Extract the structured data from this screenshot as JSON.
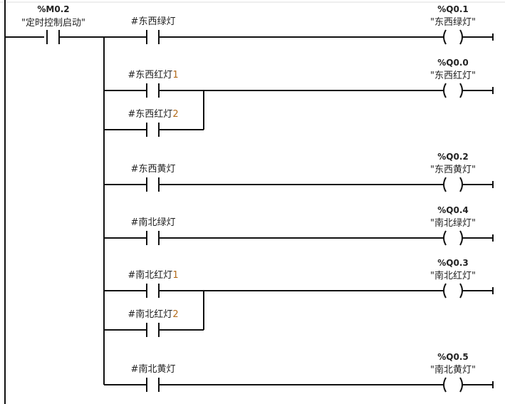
{
  "colors": {
    "address": "#1ba3b3",
    "wire": "#111111",
    "suffix": "#b26a1a"
  },
  "main_contact": {
    "address": "%M0.2",
    "name": "\"定时控制启动\""
  },
  "networks": [
    {
      "contacts": [
        {
          "name": "#东西绿灯",
          "suffix": ""
        }
      ],
      "coil": {
        "address": "%Q0.1",
        "name": "\"东西绿灯\""
      }
    },
    {
      "contacts": [
        {
          "name": "#东西红灯",
          "suffix": "1"
        },
        {
          "name": "#东西红灯",
          "suffix": "2"
        }
      ],
      "coil": {
        "address": "%Q0.0",
        "name": "\"东西红灯\""
      }
    },
    {
      "contacts": [
        {
          "name": "#东西黄灯",
          "suffix": ""
        }
      ],
      "coil": {
        "address": "%Q0.2",
        "name": "\"东西黄灯\""
      }
    },
    {
      "contacts": [
        {
          "name": "#南北绿灯",
          "suffix": ""
        }
      ],
      "coil": {
        "address": "%Q0.4",
        "name": "\"南北绿灯\""
      }
    },
    {
      "contacts": [
        {
          "name": "#南北红灯",
          "suffix": "1"
        },
        {
          "name": "#南北红灯",
          "suffix": "2"
        }
      ],
      "coil": {
        "address": "%Q0.3",
        "name": "\"南北红灯\""
      }
    },
    {
      "contacts": [
        {
          "name": "#南北黄灯",
          "suffix": ""
        }
      ],
      "coil": {
        "address": "%Q0.5",
        "name": "\"南北黄灯\""
      }
    }
  ]
}
